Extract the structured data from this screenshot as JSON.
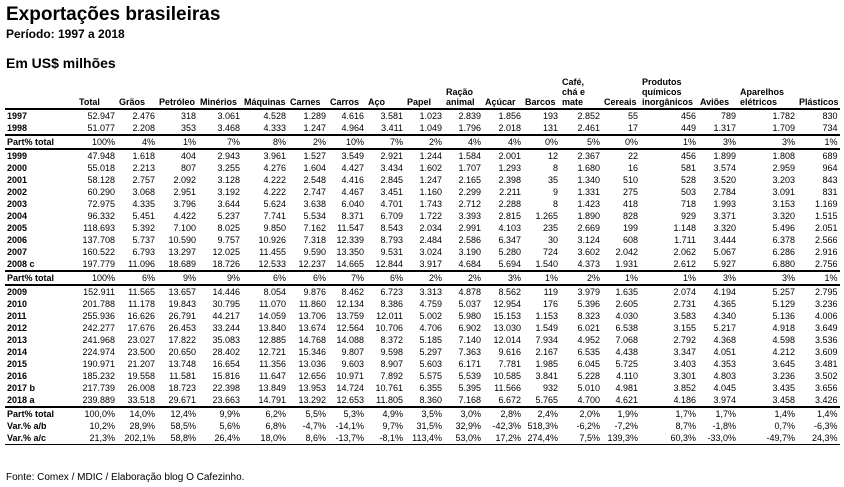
{
  "header": {
    "title": "Exportações brasileiras",
    "subtitle": "Período: 1997 a 2018",
    "unit": "Em US$ milhões"
  },
  "table": {
    "columns": [
      "Total",
      "Grãos",
      "Petróleo",
      "Minérios",
      "Máquinas",
      "Carnes",
      "Carros",
      "Aço",
      "Papel",
      "Ração\nanimal",
      "Açúcar",
      "Barcos",
      "Café,\nchá e\nmate",
      "Cereais",
      "Produtos\nquímicos\ninorgânicos",
      "Aviões",
      "Aparelhos\nelétricos",
      "Plásticos"
    ],
    "groups": [
      [
        [
          "1997",
          "52.947",
          "2.476",
          "318",
          "3.061",
          "4.528",
          "1.289",
          "4.616",
          "3.581",
          "1.023",
          "2.839",
          "1.856",
          "193",
          "2.852",
          "55",
          "456",
          "789",
          "1.782",
          "830"
        ],
        [
          "1998",
          "51.077",
          "2.208",
          "353",
          "3.468",
          "4.333",
          "1.247",
          "4.964",
          "3.411",
          "1.049",
          "1.796",
          "2.018",
          "131",
          "2.461",
          "17",
          "449",
          "1.317",
          "1.709",
          "734"
        ]
      ],
      [
        [
          "Part% total",
          "100%",
          "4%",
          "1%",
          "7%",
          "8%",
          "2%",
          "10%",
          "7%",
          "2%",
          "4%",
          "4%",
          "0%",
          "5%",
          "0%",
          "1%",
          "3%",
          "3%",
          "1%"
        ]
      ],
      [
        [
          "1999",
          "47.948",
          "1.618",
          "404",
          "2.943",
          "3.961",
          "1.527",
          "3.549",
          "2.921",
          "1.244",
          "1.584",
          "2.001",
          "12",
          "2.367",
          "22",
          "456",
          "1.899",
          "1.808",
          "689"
        ],
        [
          "2000",
          "55.018",
          "2.213",
          "807",
          "3.255",
          "4.276",
          "1.604",
          "4.427",
          "3.434",
          "1.602",
          "1.707",
          "1.293",
          "8",
          "1.680",
          "16",
          "581",
          "3.574",
          "2.959",
          "964"
        ],
        [
          "2001",
          "58.128",
          "2.757",
          "2.092",
          "3.128",
          "4.222",
          "2.548",
          "4.416",
          "2.845",
          "1.247",
          "2.165",
          "2.398",
          "35",
          "1.340",
          "510",
          "528",
          "3.520",
          "3.203",
          "843"
        ],
        [
          "2002",
          "60.290",
          "3.068",
          "2.951",
          "3.192",
          "4.222",
          "2.747",
          "4.467",
          "3.451",
          "1.160",
          "2.299",
          "2.211",
          "9",
          "1.331",
          "275",
          "503",
          "2.784",
          "3.091",
          "831"
        ],
        [
          "2003",
          "72.975",
          "4.335",
          "3.796",
          "3.644",
          "5.624",
          "3.638",
          "6.040",
          "4.701",
          "1.743",
          "2.712",
          "2.288",
          "8",
          "1.423",
          "418",
          "718",
          "1.993",
          "3.153",
          "1.169"
        ],
        [
          "2004",
          "96.332",
          "5.451",
          "4.422",
          "5.237",
          "7.741",
          "5.534",
          "8.371",
          "6.709",
          "1.722",
          "3.393",
          "2.815",
          "1.265",
          "1.890",
          "828",
          "929",
          "3.371",
          "3.320",
          "1.515"
        ],
        [
          "2005",
          "118.693",
          "5.392",
          "7.100",
          "8.025",
          "9.850",
          "7.162",
          "11.547",
          "8.543",
          "2.034",
          "2.991",
          "4.103",
          "235",
          "2.669",
          "199",
          "1.148",
          "3.320",
          "5.496",
          "2.051"
        ],
        [
          "2006",
          "137.708",
          "5.737",
          "10.590",
          "9.757",
          "10.926",
          "7.318",
          "12.339",
          "8.793",
          "2.484",
          "2.586",
          "6.347",
          "30",
          "3.124",
          "608",
          "1.711",
          "3.444",
          "6.378",
          "2.566"
        ],
        [
          "2007",
          "160.522",
          "6.793",
          "13.297",
          "12.025",
          "11.455",
          "9.590",
          "13.350",
          "9.531",
          "3.024",
          "3.190",
          "5.280",
          "724",
          "3.602",
          "2.042",
          "2.062",
          "5.067",
          "6.286",
          "2.916"
        ],
        [
          "2008 c",
          "197.779",
          "11.096",
          "18.689",
          "18.726",
          "12.533",
          "12.237",
          "14.665",
          "12.844",
          "3.917",
          "4.684",
          "5.694",
          "1.540",
          "4.373",
          "1.931",
          "2.612",
          "5.927",
          "6.880",
          "2.756"
        ]
      ],
      [
        [
          "Part% total",
          "100%",
          "6%",
          "9%",
          "9%",
          "6%",
          "6%",
          "7%",
          "6%",
          "2%",
          "2%",
          "3%",
          "1%",
          "2%",
          "1%",
          "1%",
          "3%",
          "3%",
          "1%"
        ]
      ],
      [
        [
          "2009",
          "152.911",
          "11.565",
          "13.657",
          "14.446",
          "8.054",
          "9.876",
          "8.462",
          "6.723",
          "3.313",
          "4.878",
          "8.562",
          "119",
          "3.979",
          "1.635",
          "2.074",
          "4.194",
          "5.257",
          "2.795"
        ],
        [
          "2010",
          "201.788",
          "11.178",
          "19.843",
          "30.795",
          "11.070",
          "11.860",
          "12.134",
          "8.386",
          "4.759",
          "5.037",
          "12.954",
          "176",
          "5.396",
          "2.605",
          "2.731",
          "4.365",
          "5.129",
          "3.236"
        ],
        [
          "2011",
          "255.936",
          "16.626",
          "26.791",
          "44.217",
          "14.059",
          "13.706",
          "13.759",
          "12.011",
          "5.002",
          "5.980",
          "15.153",
          "1.153",
          "8.323",
          "4.030",
          "3.583",
          "4.340",
          "5.136",
          "4.006"
        ],
        [
          "2012",
          "242.277",
          "17.676",
          "26.453",
          "33.244",
          "13.840",
          "13.674",
          "12.564",
          "10.706",
          "4.706",
          "6.902",
          "13.030",
          "1.549",
          "6.021",
          "6.538",
          "3.155",
          "5.217",
          "4.918",
          "3.649"
        ],
        [
          "2013",
          "241.968",
          "23.027",
          "17.822",
          "35.083",
          "12.885",
          "14.768",
          "14.088",
          "8.372",
          "5.185",
          "7.140",
          "12.014",
          "7.934",
          "4.952",
          "7.068",
          "2.792",
          "4.368",
          "4.598",
          "3.536"
        ],
        [
          "2014",
          "224.974",
          "23.500",
          "20.650",
          "28.402",
          "12.721",
          "15.346",
          "9.807",
          "9.598",
          "5.297",
          "7.363",
          "9.616",
          "2.167",
          "6.535",
          "4.438",
          "3.347",
          "4.051",
          "4.212",
          "3.609"
        ],
        [
          "2015",
          "190.971",
          "21.207",
          "13.748",
          "16.654",
          "11.356",
          "13.036",
          "9.603",
          "8.907",
          "5.603",
          "6.171",
          "7.781",
          "1.985",
          "6.045",
          "5.725",
          "3.403",
          "4.353",
          "3.645",
          "3.481"
        ],
        [
          "2016",
          "185.232",
          "19.558",
          "11.581",
          "15.816",
          "11.647",
          "12.656",
          "10.971",
          "7.892",
          "5.575",
          "5.539",
          "10.585",
          "3.841",
          "5.228",
          "4.110",
          "3.301",
          "4.803",
          "3.236",
          "3.502"
        ],
        [
          "2017 b",
          "217.739",
          "26.008",
          "18.723",
          "22.398",
          "13.849",
          "13.953",
          "14.724",
          "10.761",
          "6.355",
          "5.395",
          "11.566",
          "932",
          "5.010",
          "4.981",
          "3.852",
          "4.045",
          "3.435",
          "3.656"
        ],
        [
          "2018 a",
          "239.889",
          "33.518",
          "29.671",
          "23.663",
          "14.791",
          "13.292",
          "12.653",
          "11.805",
          "8.360",
          "7.168",
          "6.672",
          "5.765",
          "4.700",
          "4.621",
          "4.186",
          "3.974",
          "3.458",
          "3.426"
        ]
      ],
      [
        [
          "Part% total",
          "100,0%",
          "14,0%",
          "12,4%",
          "9,9%",
          "6,2%",
          "5,5%",
          "5,3%",
          "4,9%",
          "3,5%",
          "3,0%",
          "2,8%",
          "2,4%",
          "2,0%",
          "1,9%",
          "1,7%",
          "1,7%",
          "1,4%",
          "1,4%"
        ],
        [
          "Var.% a/b",
          "10,2%",
          "28,9%",
          "58,5%",
          "5,6%",
          "6,8%",
          "-4,7%",
          "-14,1%",
          "9,7%",
          "31,5%",
          "32,9%",
          "-42,3%",
          "518,3%",
          "-6,2%",
          "-7,2%",
          "8,7%",
          "-1,8%",
          "0,7%",
          "-6,3%"
        ],
        [
          "Var.% a/c",
          "21,3%",
          "202,1%",
          "58,8%",
          "26,4%",
          "18,0%",
          "8,6%",
          "-13,7%",
          "-8,1%",
          "113,4%",
          "53,0%",
          "17,2%",
          "274,4%",
          "7,5%",
          "139,3%",
          "60,3%",
          "-33,0%",
          "-49,7%",
          "24,3%"
        ]
      ]
    ]
  },
  "footer": {
    "source": "Fonte: Comex / MDIC / Elaboração blog O Cafezinho."
  }
}
